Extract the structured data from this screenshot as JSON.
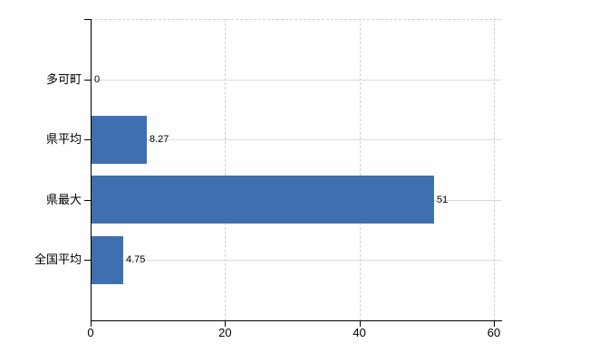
{
  "chart_data": {
    "type": "bar",
    "orientation": "horizontal",
    "title": "",
    "categories": [
      "多可町",
      "県平均",
      "県最大",
      "全国平均"
    ],
    "values": [
      0,
      8.27,
      51,
      4.75
    ],
    "value_labels": [
      "0",
      "8.27",
      "51",
      "4.75"
    ],
    "x_ticks": [
      0,
      20,
      40,
      60
    ],
    "x_tick_labels": [
      "0",
      "20",
      "40",
      "60"
    ],
    "xlim": [
      0,
      61
    ],
    "grid": true,
    "legend": false,
    "colors": {
      "bar": "#3e6fae",
      "axis": "#000000",
      "gridline": "#d6d6d6",
      "background": "#ffffff"
    }
  }
}
